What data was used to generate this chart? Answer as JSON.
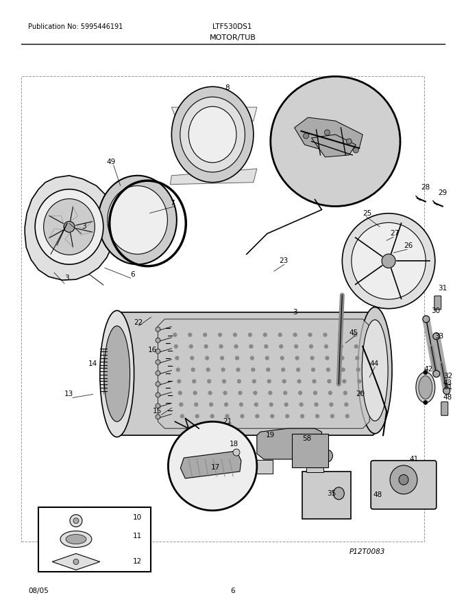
{
  "publication_no": "Publication No: 5995446191",
  "model": "LTF530DS1",
  "section": "MOTOR/TUB",
  "date": "08/05",
  "page": "6",
  "part_code": "P12T0083",
  "bg_color": "#ffffff",
  "line_color": "#000000",
  "text_color": "#000000",
  "figsize": [
    6.8,
    8.8
  ],
  "dpi": 100
}
